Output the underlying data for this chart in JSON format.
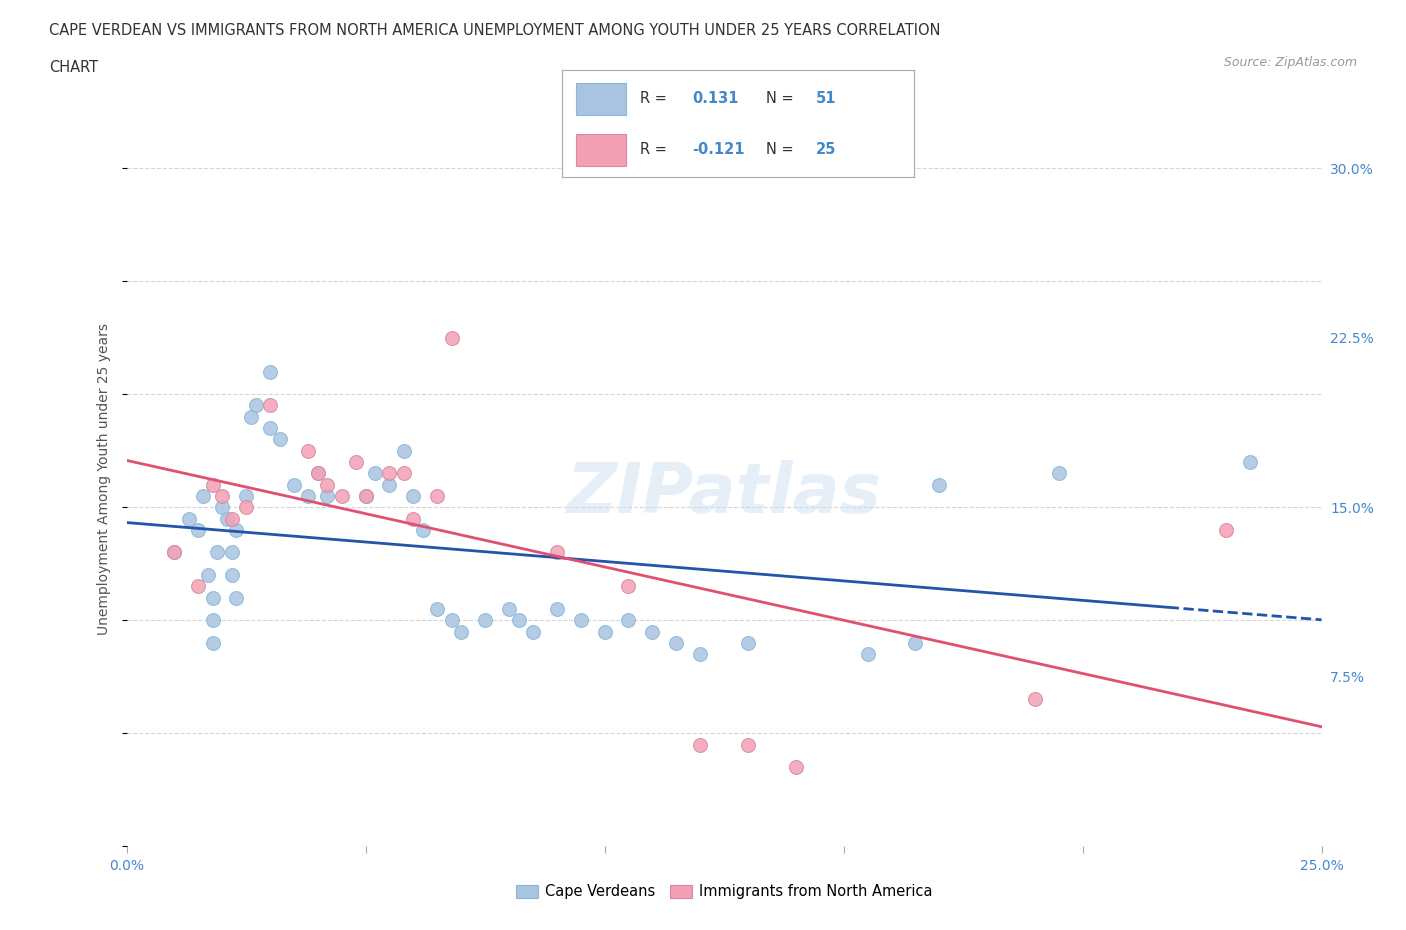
{
  "title_line1": "CAPE VERDEAN VS IMMIGRANTS FROM NORTH AMERICA UNEMPLOYMENT AMONG YOUTH UNDER 25 YEARS CORRELATION",
  "title_line2": "CHART",
  "source": "Source: ZipAtlas.com",
  "ylabel": "Unemployment Among Youth under 25 years",
  "xlim": [
    0.0,
    0.25
  ],
  "ylim": [
    0.0,
    0.325
  ],
  "xticks": [
    0.0,
    0.05,
    0.1,
    0.15,
    0.2,
    0.25
  ],
  "xtick_labels": [
    "0.0%",
    "",
    "",
    "",
    "",
    "25.0%"
  ],
  "yticks": [
    0.075,
    0.15,
    0.225,
    0.3
  ],
  "ytick_labels": [
    "7.5%",
    "15.0%",
    "22.5%",
    "30.0%"
  ],
  "blue_R": "0.131",
  "blue_N": "51",
  "pink_R": "-0.121",
  "pink_N": "25",
  "blue_color": "#a8c4e0",
  "pink_color": "#f4a0b4",
  "blue_line_color": "#2255aa",
  "pink_line_color": "#e05070",
  "blue_scatter": [
    [
      0.01,
      0.13
    ],
    [
      0.013,
      0.145
    ],
    [
      0.015,
      0.14
    ],
    [
      0.016,
      0.155
    ],
    [
      0.017,
      0.12
    ],
    [
      0.018,
      0.11
    ],
    [
      0.018,
      0.1
    ],
    [
      0.018,
      0.09
    ],
    [
      0.019,
      0.13
    ],
    [
      0.02,
      0.15
    ],
    [
      0.021,
      0.145
    ],
    [
      0.022,
      0.13
    ],
    [
      0.022,
      0.12
    ],
    [
      0.023,
      0.11
    ],
    [
      0.023,
      0.14
    ],
    [
      0.025,
      0.155
    ],
    [
      0.026,
      0.19
    ],
    [
      0.027,
      0.195
    ],
    [
      0.03,
      0.21
    ],
    [
      0.03,
      0.185
    ],
    [
      0.032,
      0.18
    ],
    [
      0.035,
      0.16
    ],
    [
      0.038,
      0.155
    ],
    [
      0.04,
      0.165
    ],
    [
      0.042,
      0.155
    ],
    [
      0.05,
      0.155
    ],
    [
      0.052,
      0.165
    ],
    [
      0.055,
      0.16
    ],
    [
      0.058,
      0.175
    ],
    [
      0.06,
      0.155
    ],
    [
      0.062,
      0.14
    ],
    [
      0.065,
      0.105
    ],
    [
      0.068,
      0.1
    ],
    [
      0.07,
      0.095
    ],
    [
      0.075,
      0.1
    ],
    [
      0.08,
      0.105
    ],
    [
      0.082,
      0.1
    ],
    [
      0.085,
      0.095
    ],
    [
      0.09,
      0.105
    ],
    [
      0.095,
      0.1
    ],
    [
      0.1,
      0.095
    ],
    [
      0.105,
      0.1
    ],
    [
      0.11,
      0.095
    ],
    [
      0.115,
      0.09
    ],
    [
      0.12,
      0.085
    ],
    [
      0.13,
      0.09
    ],
    [
      0.155,
      0.085
    ],
    [
      0.165,
      0.09
    ],
    [
      0.17,
      0.16
    ],
    [
      0.195,
      0.165
    ],
    [
      0.235,
      0.17
    ]
  ],
  "pink_scatter": [
    [
      0.01,
      0.13
    ],
    [
      0.015,
      0.115
    ],
    [
      0.018,
      0.16
    ],
    [
      0.02,
      0.155
    ],
    [
      0.022,
      0.145
    ],
    [
      0.025,
      0.15
    ],
    [
      0.03,
      0.195
    ],
    [
      0.038,
      0.175
    ],
    [
      0.04,
      0.165
    ],
    [
      0.042,
      0.16
    ],
    [
      0.045,
      0.155
    ],
    [
      0.048,
      0.17
    ],
    [
      0.05,
      0.155
    ],
    [
      0.055,
      0.165
    ],
    [
      0.058,
      0.165
    ],
    [
      0.06,
      0.145
    ],
    [
      0.065,
      0.155
    ],
    [
      0.068,
      0.225
    ],
    [
      0.09,
      0.13
    ],
    [
      0.105,
      0.115
    ],
    [
      0.12,
      0.045
    ],
    [
      0.13,
      0.045
    ],
    [
      0.14,
      0.035
    ],
    [
      0.19,
      0.065
    ],
    [
      0.23,
      0.14
    ]
  ],
  "watermark": "ZIPatlas",
  "legend_label_blue": "Cape Verdeans",
  "legend_label_pink": "Immigrants from North America",
  "grid_color": "#cccccc",
  "background_color": "#ffffff"
}
